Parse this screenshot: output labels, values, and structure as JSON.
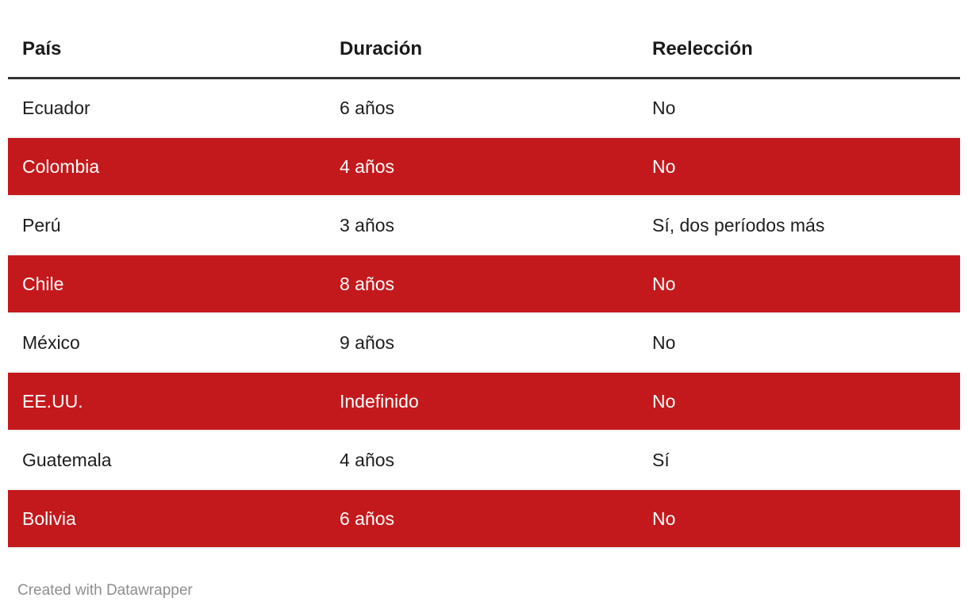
{
  "chart_data": {
    "type": "table",
    "title": "",
    "columns": [
      "País",
      "Duración",
      "Reelección"
    ],
    "rows": [
      [
        "Ecuador",
        "6 años",
        "No"
      ],
      [
        "Colombia",
        "4 años",
        "No"
      ],
      [
        "Perú",
        "3 años",
        "Sí, dos períodos más"
      ],
      [
        "Chile",
        "8 años",
        "No"
      ],
      [
        "México",
        "9 años",
        "No"
      ],
      [
        "EE.UU.",
        "Indefinido",
        "No"
      ],
      [
        "Guatemala",
        "4 años",
        "Sí"
      ],
      [
        "Bolivia",
        "6 años",
        "No"
      ]
    ],
    "highlighted_row_indices": [
      1,
      3,
      5,
      7
    ],
    "legend_position": "none",
    "grid": "row-dividers"
  },
  "footer": {
    "attribution": "Created with Datawrapper"
  },
  "colors": {
    "highlight_row": "#c4191c",
    "highlight_row_text": "#ffffff",
    "header_rule": "#333333",
    "row_divider": "#f2f2f2",
    "footer_text": "#8e8e8e",
    "body_text": "#1d1d1d"
  }
}
